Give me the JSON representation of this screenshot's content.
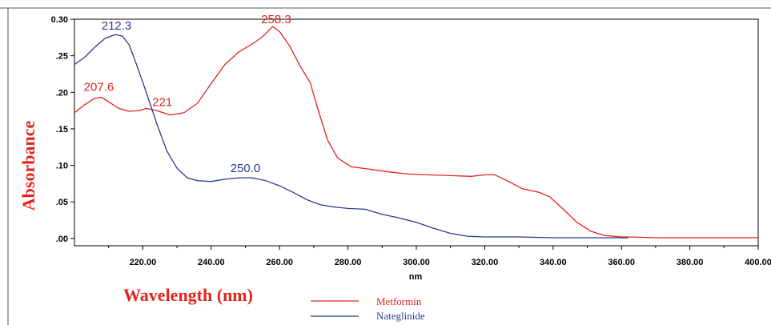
{
  "colors": {
    "metformin": "#e3241c",
    "nateglinide": "#2b3990",
    "axis_title": "#e3241c",
    "axis": "#000000",
    "background": "#ffffff"
  },
  "chart_data": {
    "type": "line",
    "xlabel": "Wavelength (nm)",
    "x_unit_label": "nm",
    "ylabel": "Absorbance",
    "xlim": [
      200,
      400
    ],
    "ylim": [
      -0.01,
      0.3
    ],
    "x_ticks": [
      "220.00",
      "240.00",
      "260.00",
      "280.00",
      "300.00",
      "320.00",
      "340.00",
      "360.00",
      "380.00",
      "400.00"
    ],
    "y_ticks": [
      "0.30",
      ".25",
      ".20",
      ".15",
      ".10",
      ".05",
      ".00"
    ],
    "grid": false,
    "legend_position": "bottom-center",
    "series": [
      {
        "name": "Metformin",
        "color": "#e3241c",
        "points": [
          [
            200,
            0.172
          ],
          [
            203,
            0.183
          ],
          [
            206,
            0.192
          ],
          [
            208,
            0.193
          ],
          [
            210,
            0.187
          ],
          [
            213,
            0.178
          ],
          [
            216,
            0.174
          ],
          [
            219,
            0.175
          ],
          [
            221,
            0.178
          ],
          [
            224,
            0.175
          ],
          [
            228,
            0.169
          ],
          [
            232,
            0.172
          ],
          [
            236,
            0.185
          ],
          [
            240,
            0.212
          ],
          [
            244,
            0.238
          ],
          [
            248,
            0.255
          ],
          [
            252,
            0.266
          ],
          [
            255,
            0.276
          ],
          [
            258,
            0.29
          ],
          [
            260,
            0.283
          ],
          [
            263,
            0.263
          ],
          [
            266,
            0.236
          ],
          [
            269,
            0.213
          ],
          [
            271,
            0.18
          ],
          [
            274,
            0.135
          ],
          [
            277,
            0.11
          ],
          [
            281,
            0.098
          ],
          [
            286,
            0.095
          ],
          [
            292,
            0.091
          ],
          [
            298,
            0.088
          ],
          [
            303,
            0.087
          ],
          [
            310,
            0.086
          ],
          [
            316,
            0.085
          ],
          [
            320,
            0.087
          ],
          [
            323,
            0.087
          ],
          [
            327,
            0.078
          ],
          [
            331,
            0.068
          ],
          [
            336,
            0.063
          ],
          [
            339,
            0.057
          ],
          [
            343,
            0.04
          ],
          [
            347,
            0.022
          ],
          [
            351,
            0.01
          ],
          [
            355,
            0.004
          ],
          [
            360,
            0.002
          ],
          [
            362,
            0.002
          ],
          [
            370,
            0.001
          ],
          [
            380,
            0.001
          ],
          [
            390,
            0.001
          ],
          [
            400,
            0.001
          ]
        ]
      },
      {
        "name": "Nateglinide",
        "color": "#2b3990",
        "points": [
          [
            200,
            0.238
          ],
          [
            203,
            0.248
          ],
          [
            206,
            0.262
          ],
          [
            209,
            0.274
          ],
          [
            212,
            0.279
          ],
          [
            214,
            0.277
          ],
          [
            216,
            0.265
          ],
          [
            218,
            0.24
          ],
          [
            221,
            0.2
          ],
          [
            224,
            0.158
          ],
          [
            227,
            0.12
          ],
          [
            230,
            0.096
          ],
          [
            233,
            0.083
          ],
          [
            236,
            0.079
          ],
          [
            240,
            0.078
          ],
          [
            244,
            0.081
          ],
          [
            248,
            0.083
          ],
          [
            252,
            0.083
          ],
          [
            256,
            0.079
          ],
          [
            260,
            0.072
          ],
          [
            264,
            0.063
          ],
          [
            268,
            0.053
          ],
          [
            272,
            0.046
          ],
          [
            276,
            0.043
          ],
          [
            280,
            0.041
          ],
          [
            285,
            0.04
          ],
          [
            290,
            0.033
          ],
          [
            295,
            0.028
          ],
          [
            300,
            0.022
          ],
          [
            305,
            0.014
          ],
          [
            310,
            0.007
          ],
          [
            315,
            0.003
          ],
          [
            320,
            0.002
          ],
          [
            330,
            0.002
          ],
          [
            340,
            0.001
          ],
          [
            350,
            0.001
          ],
          [
            362,
            0.001
          ]
        ]
      }
    ],
    "annotations": [
      {
        "text": "212.3",
        "series": "Nateglinide",
        "x": 212.3,
        "y": 0.279
      },
      {
        "text": "258.3",
        "series": "Metformin",
        "x": 258.3,
        "y": 0.29
      },
      {
        "text": "207.6",
        "series": "Metformin",
        "x": 207.6,
        "y": 0.193
      },
      {
        "text": "221",
        "series": "Metformin",
        "x": 221,
        "y": 0.178
      },
      {
        "text": "250.0",
        "series": "Nateglinide",
        "x": 250.0,
        "y": 0.083
      }
    ]
  }
}
